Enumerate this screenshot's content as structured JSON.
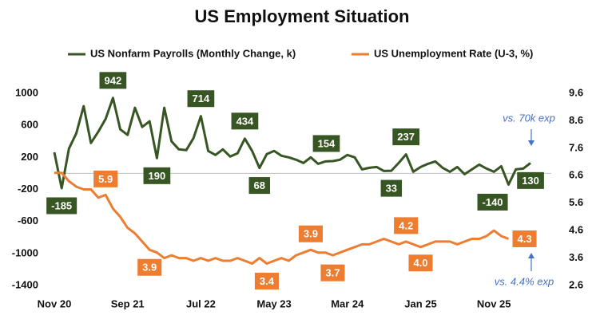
{
  "chart_data": {
    "type": "line",
    "title": "US Employment Situation",
    "categories": [
      "Nov 20",
      null,
      null,
      null,
      null,
      null,
      null,
      null,
      null,
      null,
      "Sep 21",
      null,
      null,
      null,
      null,
      null,
      null,
      null,
      null,
      null,
      "Jul 22",
      null,
      null,
      null,
      null,
      null,
      null,
      null,
      null,
      null,
      "May 23",
      null,
      null,
      null,
      null,
      null,
      null,
      null,
      null,
      null,
      "Mar 24",
      null,
      null,
      null,
      null,
      null,
      null,
      null,
      null,
      null,
      "Jan 25",
      null,
      null,
      null,
      null,
      null,
      null,
      null,
      null,
      null,
      "Nov 25",
      null,
      null,
      null,
      null,
      null
    ],
    "series": [
      {
        "name": "US Nonfarm Payrolls (Monthly Change, k)",
        "color": "#375623",
        "values": [
          264,
          -185,
          310,
          500,
          840,
          380,
          520,
          680,
          942,
          550,
          480,
          820,
          580,
          650,
          190,
          820,
          400,
          300,
          290,
          440,
          714,
          280,
          230,
          300,
          210,
          250,
          434,
          280,
          68,
          240,
          280,
          220,
          200,
          170,
          130,
          200,
          120,
          150,
          154,
          170,
          230,
          200,
          50,
          70,
          80,
          30,
          33,
          130,
          237,
          20,
          80,
          120,
          150,
          70,
          20,
          80,
          -10,
          50,
          110,
          60,
          20,
          90,
          -140,
          50,
          60,
          130
        ],
        "value_labels": [
          null,
          "-185",
          null,
          null,
          null,
          null,
          null,
          null,
          "942",
          null,
          null,
          null,
          null,
          null,
          "190",
          null,
          null,
          null,
          null,
          null,
          "714",
          null,
          null,
          null,
          null,
          null,
          "434",
          null,
          "68",
          null,
          null,
          null,
          null,
          null,
          null,
          null,
          null,
          null,
          "154",
          null,
          null,
          null,
          null,
          null,
          null,
          null,
          "33",
          null,
          "237",
          null,
          null,
          null,
          null,
          null,
          null,
          null,
          null,
          null,
          null,
          null,
          null,
          null,
          "-140",
          null,
          null,
          "130"
        ]
      },
      {
        "name": "US Unemployment Rate (U-3, %)",
        "color": "#ed7d31",
        "axis": "y2",
        "values": [
          6.7,
          6.7,
          6.4,
          6.2,
          6.1,
          6.1,
          5.8,
          5.9,
          5.4,
          5.1,
          4.7,
          4.5,
          4.2,
          3.9,
          3.8,
          3.6,
          3.7,
          3.6,
          3.6,
          3.5,
          3.6,
          3.5,
          3.6,
          3.5,
          3.5,
          3.6,
          3.5,
          3.4,
          3.6,
          3.4,
          3.5,
          3.6,
          3.5,
          3.7,
          3.8,
          3.9,
          3.8,
          3.8,
          3.7,
          3.8,
          3.9,
          4.0,
          4.1,
          4.1,
          4.2,
          4.3,
          4.2,
          4.1,
          4.2,
          4.1,
          4.0,
          4.1,
          4.2,
          4.2,
          4.2,
          4.1,
          4.2,
          4.3,
          4.3,
          4.4,
          4.6,
          4.4,
          4.3,
          null,
          null,
          null
        ],
        "value_labels": [
          null,
          null,
          null,
          null,
          null,
          null,
          null,
          "5.9",
          null,
          null,
          null,
          null,
          null,
          "3.9",
          null,
          null,
          null,
          null,
          null,
          null,
          null,
          null,
          null,
          null,
          null,
          null,
          null,
          null,
          null,
          "3.4",
          null,
          null,
          null,
          null,
          null,
          "3.9",
          null,
          null,
          "3.7",
          null,
          null,
          null,
          null,
          null,
          null,
          null,
          null,
          null,
          "4.2",
          null,
          "4.0",
          null,
          null,
          null,
          null,
          null,
          null,
          null,
          null,
          null,
          null,
          null,
          "4.3",
          null,
          null,
          null
        ]
      }
    ],
    "ylim": [
      -1400,
      1000
    ],
    "yticks": [
      -1400,
      -1000,
      -600,
      -200,
      200,
      600,
      1000
    ],
    "y2lim": [
      2.6,
      9.6
    ],
    "y2ticks": [
      2.6,
      3.6,
      4.6,
      5.6,
      6.6,
      7.6,
      8.6,
      9.6
    ],
    "annotations": [
      "vs. 70k exp",
      "vs. 4.4% exp"
    ],
    "grid": false
  }
}
